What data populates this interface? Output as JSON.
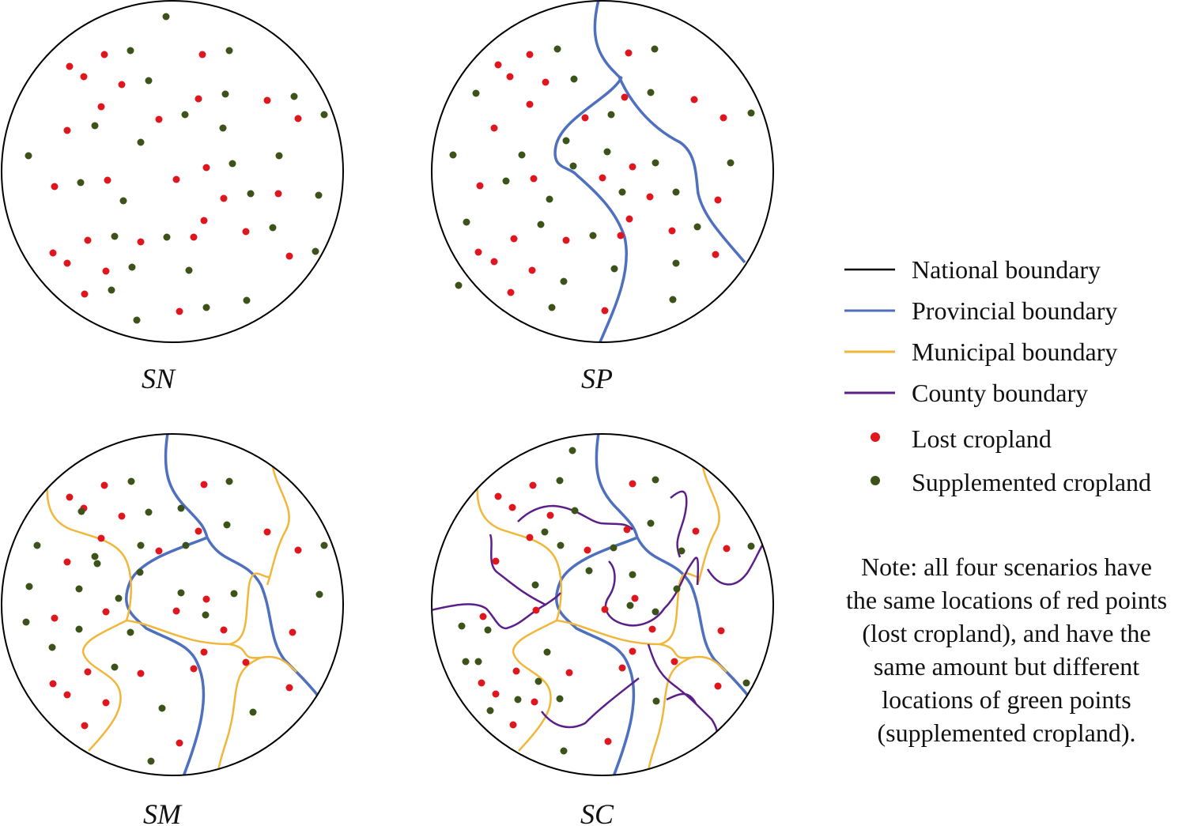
{
  "scenarios": [
    {
      "id": "sn",
      "label": "SN"
    },
    {
      "id": "sp",
      "label": "SP"
    },
    {
      "id": "sm",
      "label": "SM"
    },
    {
      "id": "sc",
      "label": "SC"
    }
  ],
  "legend": {
    "national": "National boundary",
    "provincial": "Provincial boundary",
    "municipal": "Municipal boundary",
    "county": "County boundary",
    "lost": "Lost cropland",
    "supplemented": "Supplemented cropland"
  },
  "note": {
    "line1": "Note: all four scenarios have",
    "line2": "the same locations of red points",
    "line3": "(lost cropland), and have the",
    "line4": "same amount but different",
    "line5": "locations of green points",
    "line6": "(supplemented cropland)."
  },
  "colors": {
    "national": "#000000",
    "provincial": "#4f6fbf",
    "municipal": "#f0b73a",
    "county": "#5c1f8a",
    "lost": "#e0161e",
    "supplemented": "#3b5318"
  }
}
